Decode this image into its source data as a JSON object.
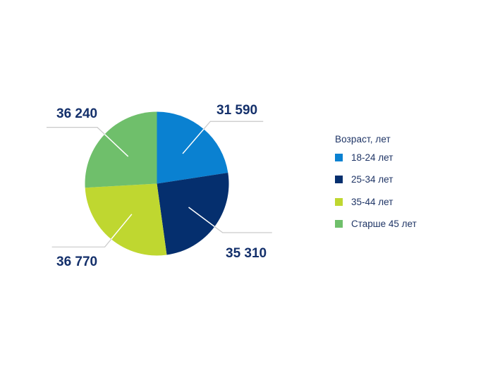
{
  "chart_data": {
    "type": "pie",
    "title": "",
    "legend_title": "Возраст, лет",
    "legend_position": "right",
    "start_angle_deg": 0,
    "direction": "clockwise",
    "slices": [
      {
        "label": "18-24 лет",
        "value": 31590,
        "value_text": "31 590",
        "color": "#0a81d1"
      },
      {
        "label": "25-34 лет",
        "value": 35310,
        "value_text": "35 310",
        "color": "#052f6e"
      },
      {
        "label": "35-44 лет",
        "value": 36770,
        "value_text": "36 770",
        "color": "#bfd730"
      },
      {
        "label": "Старше 45 лет",
        "value": 36240,
        "value_text": "36 240",
        "color": "#6fbf6b"
      }
    ]
  }
}
